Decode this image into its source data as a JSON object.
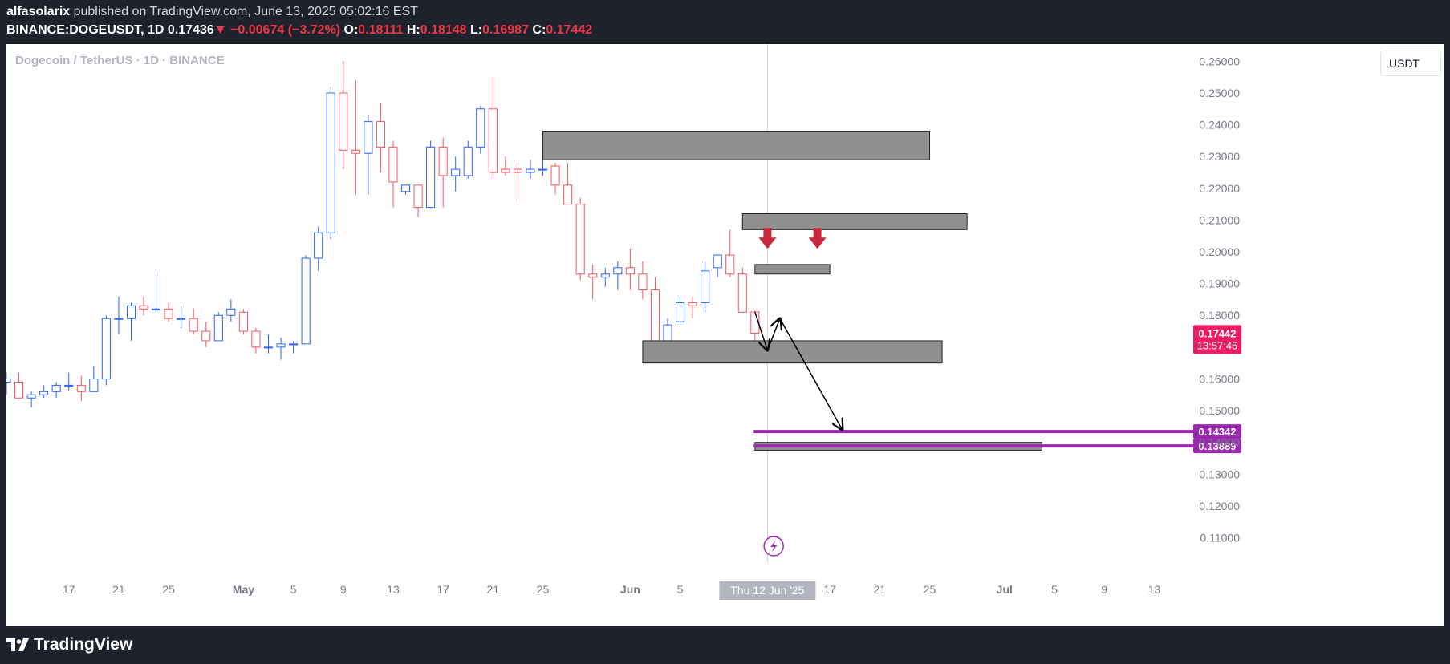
{
  "header": {
    "author": "alfasolarix",
    "published_text": "published on TradingView.com, June 13, 2025 05:02:16 EST",
    "symbol": "BINANCE:DOGEUSDT",
    "interval": "1D",
    "last_price": "0.17436",
    "change_arrow": "▼",
    "change": "−0.00674 (−3.72%)",
    "open_label": "O:",
    "open": "0.18111",
    "high_label": "H:",
    "high": "0.18148",
    "low_label": "L:",
    "low": "0.16987",
    "close_label": "C:",
    "close": "0.17442"
  },
  "chart": {
    "symbol_desc": "Dogecoin / TetherUS · 1D · BINANCE",
    "currency": "USDT"
  },
  "footer": {
    "brand": "TradingView"
  },
  "chart_data": {
    "type": "candlestick",
    "colors": {
      "up": "#2962ff",
      "down": "#f7525f",
      "zone": "#909090",
      "level": "#9c27b0",
      "price_tag": "#e91e63",
      "arrow": "#c8283c"
    },
    "y_ticks": [
      "0.26000",
      "0.25000",
      "0.24000",
      "0.23000",
      "0.22000",
      "0.21000",
      "0.20000",
      "0.19000",
      "0.18000",
      "0.17000",
      "0.16000",
      "0.15000",
      "0.14000",
      "0.13000",
      "0.12000",
      "0.11000"
    ],
    "y_tick_values": [
      0.26,
      0.25,
      0.24,
      0.23,
      0.22,
      0.21,
      0.2,
      0.19,
      0.18,
      0.17,
      0.16,
      0.15,
      0.14,
      0.13,
      0.12,
      0.11
    ],
    "ylim": [
      0.1023,
      0.2654
    ],
    "x_ticks": [
      {
        "label": "17",
        "day": -9
      },
      {
        "label": "21",
        "day": -5
      },
      {
        "label": "25",
        "day": -1
      },
      {
        "label": "May",
        "day": 5
      },
      {
        "label": "5",
        "day": 9
      },
      {
        "label": "9",
        "day": 13
      },
      {
        "label": "13",
        "day": 17
      },
      {
        "label": "17",
        "day": 21
      },
      {
        "label": "21",
        "day": 25
      },
      {
        "label": "25",
        "day": 29
      },
      {
        "label": "Jun",
        "day": 36
      },
      {
        "label": "5",
        "day": 40
      },
      {
        "label": "9",
        "day": 44
      },
      {
        "label": "17",
        "day": 52
      },
      {
        "label": "21",
        "day": 56
      },
      {
        "label": "25",
        "day": 60
      },
      {
        "label": "Jul",
        "day": 66
      },
      {
        "label": "5",
        "day": 70
      },
      {
        "label": "9",
        "day": 74
      },
      {
        "label": "13",
        "day": 78
      }
    ],
    "xlim": [
      -14,
      81
    ],
    "crosshair": {
      "day": 47,
      "label": "Thu 12 Jun '25"
    },
    "candles": [
      {
        "day": -14,
        "o": 0.159,
        "h": 0.162,
        "l": 0.155,
        "c": 0.16
      },
      {
        "day": -13,
        "o": 0.159,
        "h": 0.162,
        "l": 0.154,
        "c": 0.154
      },
      {
        "day": -12,
        "o": 0.154,
        "h": 0.156,
        "l": 0.151,
        "c": 0.155
      },
      {
        "day": -11,
        "o": 0.155,
        "h": 0.158,
        "l": 0.154,
        "c": 0.156
      },
      {
        "day": -10,
        "o": 0.156,
        "h": 0.159,
        "l": 0.154,
        "c": 0.158
      },
      {
        "day": -9,
        "o": 0.158,
        "h": 0.162,
        "l": 0.156,
        "c": 0.158
      },
      {
        "day": -8,
        "o": 0.158,
        "h": 0.161,
        "l": 0.153,
        "c": 0.156
      },
      {
        "day": -7,
        "o": 0.156,
        "h": 0.164,
        "l": 0.156,
        "c": 0.16
      },
      {
        "day": -6,
        "o": 0.16,
        "h": 0.18,
        "l": 0.158,
        "c": 0.179
      },
      {
        "day": -5,
        "o": 0.179,
        "h": 0.186,
        "l": 0.174,
        "c": 0.179
      },
      {
        "day": -4,
        "o": 0.179,
        "h": 0.184,
        "l": 0.172,
        "c": 0.183
      },
      {
        "day": -3,
        "o": 0.183,
        "h": 0.186,
        "l": 0.18,
        "c": 0.182
      },
      {
        "day": -2,
        "o": 0.182,
        "h": 0.193,
        "l": 0.181,
        "c": 0.182
      },
      {
        "day": -1,
        "o": 0.182,
        "h": 0.184,
        "l": 0.178,
        "c": 0.179
      },
      {
        "day": 0,
        "o": 0.179,
        "h": 0.183,
        "l": 0.176,
        "c": 0.179
      },
      {
        "day": 1,
        "o": 0.179,
        "h": 0.182,
        "l": 0.174,
        "c": 0.175
      },
      {
        "day": 2,
        "o": 0.175,
        "h": 0.178,
        "l": 0.17,
        "c": 0.172
      },
      {
        "day": 3,
        "o": 0.172,
        "h": 0.181,
        "l": 0.172,
        "c": 0.18
      },
      {
        "day": 4,
        "o": 0.18,
        "h": 0.185,
        "l": 0.178,
        "c": 0.182
      },
      {
        "day": 5,
        "o": 0.181,
        "h": 0.182,
        "l": 0.174,
        "c": 0.175
      },
      {
        "day": 6,
        "o": 0.175,
        "h": 0.176,
        "l": 0.168,
        "c": 0.17
      },
      {
        "day": 7,
        "o": 0.17,
        "h": 0.174,
        "l": 0.168,
        "c": 0.17
      },
      {
        "day": 8,
        "o": 0.17,
        "h": 0.173,
        "l": 0.166,
        "c": 0.171
      },
      {
        "day": 9,
        "o": 0.171,
        "h": 0.172,
        "l": 0.168,
        "c": 0.171
      },
      {
        "day": 10,
        "o": 0.171,
        "h": 0.199,
        "l": 0.171,
        "c": 0.198
      },
      {
        "day": 11,
        "o": 0.198,
        "h": 0.208,
        "l": 0.194,
        "c": 0.206
      },
      {
        "day": 12,
        "o": 0.206,
        "h": 0.252,
        "l": 0.204,
        "c": 0.25
      },
      {
        "day": 13,
        "o": 0.25,
        "h": 0.26,
        "l": 0.226,
        "c": 0.232
      },
      {
        "day": 14,
        "o": 0.232,
        "h": 0.254,
        "l": 0.218,
        "c": 0.231
      },
      {
        "day": 15,
        "o": 0.231,
        "h": 0.243,
        "l": 0.218,
        "c": 0.241
      },
      {
        "day": 16,
        "o": 0.241,
        "h": 0.247,
        "l": 0.225,
        "c": 0.233
      },
      {
        "day": 17,
        "o": 0.233,
        "h": 0.235,
        "l": 0.214,
        "c": 0.222
      },
      {
        "day": 18,
        "o": 0.219,
        "h": 0.221,
        "l": 0.218,
        "c": 0.221
      },
      {
        "day": 19,
        "o": 0.221,
        "h": 0.221,
        "l": 0.211,
        "c": 0.214
      },
      {
        "day": 20,
        "o": 0.214,
        "h": 0.235,
        "l": 0.214,
        "c": 0.233
      },
      {
        "day": 21,
        "o": 0.233,
        "h": 0.236,
        "l": 0.214,
        "c": 0.224
      },
      {
        "day": 22,
        "o": 0.224,
        "h": 0.23,
        "l": 0.219,
        "c": 0.226
      },
      {
        "day": 23,
        "o": 0.224,
        "h": 0.235,
        "l": 0.223,
        "c": 0.233
      },
      {
        "day": 24,
        "o": 0.233,
        "h": 0.246,
        "l": 0.231,
        "c": 0.245
      },
      {
        "day": 25,
        "o": 0.245,
        "h": 0.255,
        "l": 0.223,
        "c": 0.225
      },
      {
        "day": 26,
        "o": 0.226,
        "h": 0.23,
        "l": 0.224,
        "c": 0.225
      },
      {
        "day": 27,
        "o": 0.226,
        "h": 0.228,
        "l": 0.216,
        "c": 0.225
      },
      {
        "day": 28,
        "o": 0.225,
        "h": 0.229,
        "l": 0.223,
        "c": 0.226
      },
      {
        "day": 29,
        "o": 0.226,
        "h": 0.232,
        "l": 0.224,
        "c": 0.226
      },
      {
        "day": 30,
        "o": 0.227,
        "h": 0.228,
        "l": 0.218,
        "c": 0.221
      },
      {
        "day": 31,
        "o": 0.221,
        "h": 0.228,
        "l": 0.215,
        "c": 0.215
      },
      {
        "day": 32,
        "o": 0.215,
        "h": 0.217,
        "l": 0.191,
        "c": 0.193
      },
      {
        "day": 33,
        "o": 0.193,
        "h": 0.196,
        "l": 0.185,
        "c": 0.192
      },
      {
        "day": 34,
        "o": 0.192,
        "h": 0.195,
        "l": 0.189,
        "c": 0.193
      },
      {
        "day": 35,
        "o": 0.193,
        "h": 0.197,
        "l": 0.188,
        "c": 0.195
      },
      {
        "day": 36,
        "o": 0.195,
        "h": 0.201,
        "l": 0.188,
        "c": 0.193
      },
      {
        "day": 37,
        "o": 0.193,
        "h": 0.197,
        "l": 0.185,
        "c": 0.188
      },
      {
        "day": 38,
        "o": 0.188,
        "h": 0.192,
        "l": 0.168,
        "c": 0.168
      },
      {
        "day": 39,
        "o": 0.169,
        "h": 0.179,
        "l": 0.168,
        "c": 0.177
      },
      {
        "day": 40,
        "o": 0.178,
        "h": 0.186,
        "l": 0.177,
        "c": 0.184
      },
      {
        "day": 41,
        "o": 0.184,
        "h": 0.186,
        "l": 0.179,
        "c": 0.183
      },
      {
        "day": 42,
        "o": 0.184,
        "h": 0.197,
        "l": 0.181,
        "c": 0.194
      },
      {
        "day": 43,
        "o": 0.195,
        "h": 0.199,
        "l": 0.192,
        "c": 0.199
      },
      {
        "day": 44,
        "o": 0.199,
        "h": 0.207,
        "l": 0.192,
        "c": 0.193
      },
      {
        "day": 45,
        "o": 0.193,
        "h": 0.195,
        "l": 0.181,
        "c": 0.181
      },
      {
        "day": 46,
        "o": 0.1811,
        "h": 0.1815,
        "l": 0.1699,
        "c": 0.1744
      }
    ],
    "zones": [
      {
        "x1": 29,
        "x2": 60,
        "top": 0.238,
        "bottom": 0.229
      },
      {
        "x1": 45,
        "x2": 63,
        "top": 0.212,
        "bottom": 0.207
      },
      {
        "x1": 46,
        "x2": 52,
        "top": 0.196,
        "bottom": 0.193
      },
      {
        "x1": 37,
        "x2": 61,
        "top": 0.172,
        "bottom": 0.165
      },
      {
        "x1": 46,
        "x2": 69,
        "top": 0.14,
        "bottom": 0.1375
      }
    ],
    "levels": [
      {
        "value": 0.14342,
        "label": "0.14342"
      },
      {
        "value": 0.13889,
        "label": "0.13889"
      }
    ],
    "down_arrows": [
      {
        "day": 47,
        "value": 0.204
      },
      {
        "day": 51,
        "value": 0.204
      }
    ],
    "path_lines": [
      {
        "d1": 46,
        "v1": 0.181,
        "d2": 47,
        "v2": 0.169
      },
      {
        "d1": 47,
        "v1": 0.169,
        "d2": 48,
        "v2": 0.179
      },
      {
        "d1": 48,
        "v1": 0.179,
        "d2": 53,
        "v2": 0.144
      }
    ],
    "last_price_tag": {
      "price": "0.17442",
      "timer": "13:57:45",
      "value": 0.17442
    }
  }
}
